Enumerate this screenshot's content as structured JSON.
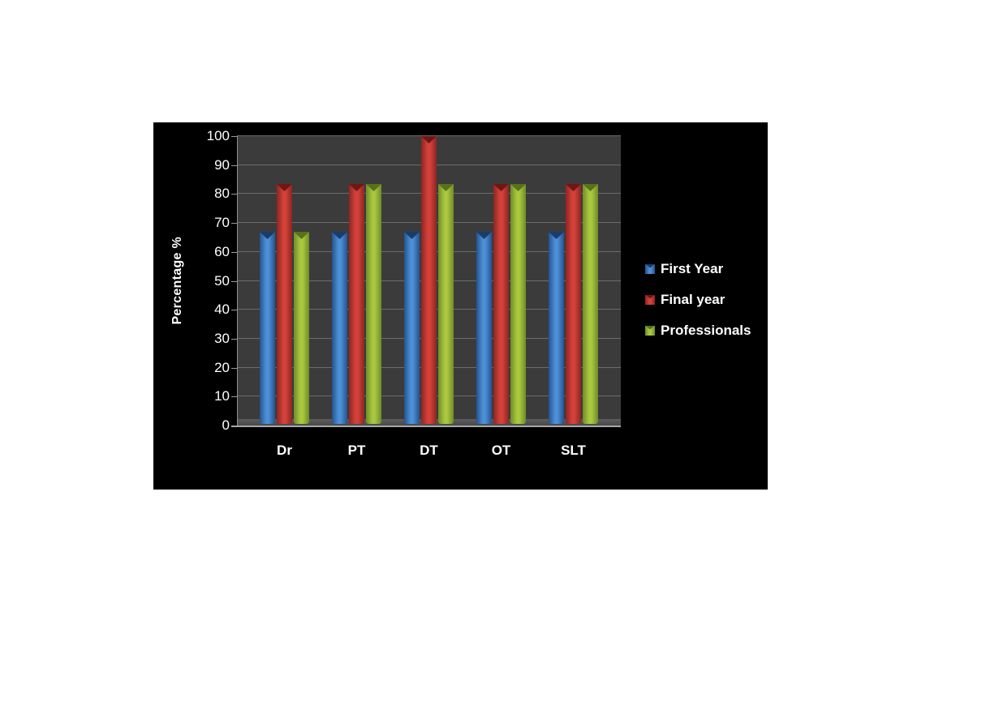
{
  "page": {
    "background": "#ffffff"
  },
  "chart": {
    "background": "#000000",
    "plot_background": "#3b3b3b",
    "gridline_color": "#6c6c6c",
    "axis_color": "#9a9a9a",
    "text_color": "#ffffff"
  },
  "chart_data": {
    "type": "bar",
    "categories": [
      "Dr",
      "PT",
      "DT",
      "OT",
      "SLT"
    ],
    "series": [
      {
        "name": "First Year",
        "values": [
          66.7,
          66.7,
          66.7,
          66.7,
          66.7
        ],
        "color": {
          "center": "#4d8fd6",
          "edge": "#24538f",
          "cap": "#1a3c69"
        }
      },
      {
        "name": "Final year",
        "values": [
          83.3,
          83.3,
          100,
          83.3,
          83.3
        ],
        "color": {
          "center": "#d2423a",
          "edge": "#8e2422",
          "cap": "#6f1715"
        }
      },
      {
        "name": "Professionals",
        "values": [
          66.7,
          83.3,
          83.3,
          83.3,
          83.3
        ],
        "color": {
          "center": "#a9c83f",
          "edge": "#6f8c28",
          "cap": "#57711c"
        }
      }
    ],
    "ylabel": "Percentage %",
    "ylim": [
      0,
      100
    ],
    "yticks": [
      0,
      10,
      20,
      30,
      40,
      50,
      60,
      70,
      80,
      90,
      100
    ],
    "grid": true,
    "legend_position": "right"
  }
}
